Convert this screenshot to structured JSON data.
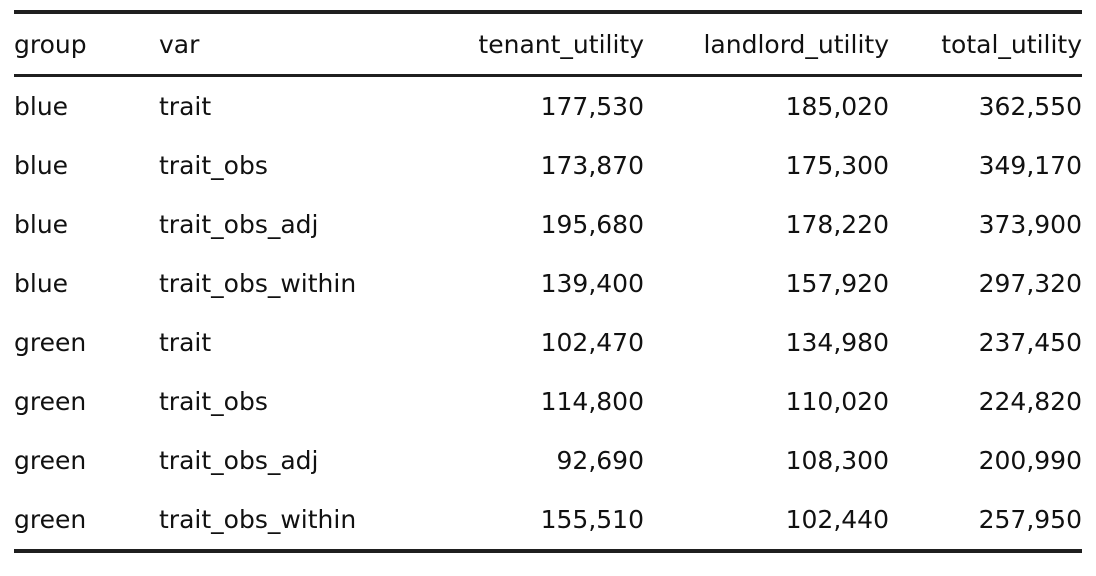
{
  "chart_data": {
    "type": "table",
    "title": "",
    "columns": [
      "group",
      "var",
      "tenant_utility",
      "landlord_utility",
      "total_utility"
    ],
    "align": [
      "left",
      "left",
      "right",
      "right",
      "right"
    ],
    "rows": [
      [
        "blue",
        "trait",
        "177,530",
        "185,020",
        "362,550"
      ],
      [
        "blue",
        "trait_obs",
        "173,870",
        "175,300",
        "349,170"
      ],
      [
        "blue",
        "trait_obs_adj",
        "195,680",
        "178,220",
        "373,900"
      ],
      [
        "blue",
        "trait_obs_within",
        "139,400",
        "157,920",
        "297,320"
      ],
      [
        "green",
        "trait",
        "102,470",
        "134,980",
        "237,450"
      ],
      [
        "green",
        "trait_obs",
        "114,800",
        "110,020",
        "224,820"
      ],
      [
        "green",
        "trait_obs_adj",
        "92,690",
        "108,300",
        "200,990"
      ],
      [
        "green",
        "trait_obs_within",
        "155,510",
        "102,440",
        "257,950"
      ]
    ],
    "colors": {
      "text": "#111111",
      "rule": "#1f1f1f",
      "background": "#ffffff"
    },
    "layout": {
      "grid": "horizontal-rules-only",
      "rule_style": "booktabs"
    }
  }
}
